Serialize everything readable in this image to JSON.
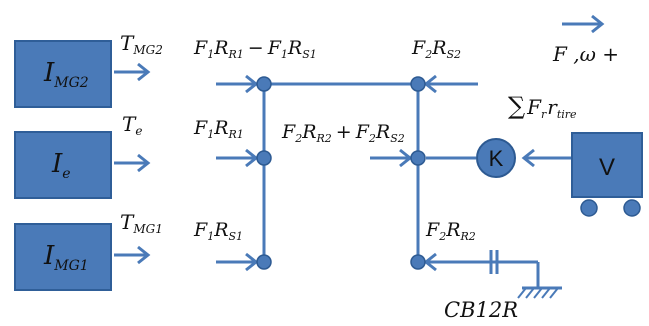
{
  "blocks": {
    "img2": {
      "var": "I",
      "sub": "MG2"
    },
    "ie": {
      "var": "I",
      "sub": "e"
    },
    "img1": {
      "var": "I",
      "sub": "MG1"
    }
  },
  "torques": {
    "tmg2": {
      "var": "T",
      "sub": "MG2"
    },
    "te": {
      "var": "T",
      "sub": "e"
    },
    "tmg1": {
      "var": "T",
      "sub": "MG1"
    }
  },
  "labels": {
    "top_mid": "F₁R₁₁ − F₁Rₛ₁",
    "f1rr1": {
      "a": "F",
      "a_sub": "1",
      "b": "R",
      "b_sub": "R1"
    },
    "f1rs1": {
      "a": "F",
      "a_sub": "1",
      "b": "R",
      "b_sub": "S1"
    },
    "f2rs2": {
      "a": "F",
      "a_sub": "2",
      "b": "R",
      "b_sub": "S2"
    },
    "f2rr2": {
      "a": "F",
      "a_sub": "2",
      "b": "R",
      "b_sub": "R2"
    },
    "diff_f": "F",
    "diff_minus": "−",
    "sum_plus": "+",
    "sum_sym": "∑",
    "sum_f": "F",
    "sum_f_sub": "r",
    "sum_r": "r",
    "sum_r_sub": "tire",
    "f_omega": "F ,ω +",
    "k": "K",
    "v": "V",
    "cb": "CB12R"
  }
}
